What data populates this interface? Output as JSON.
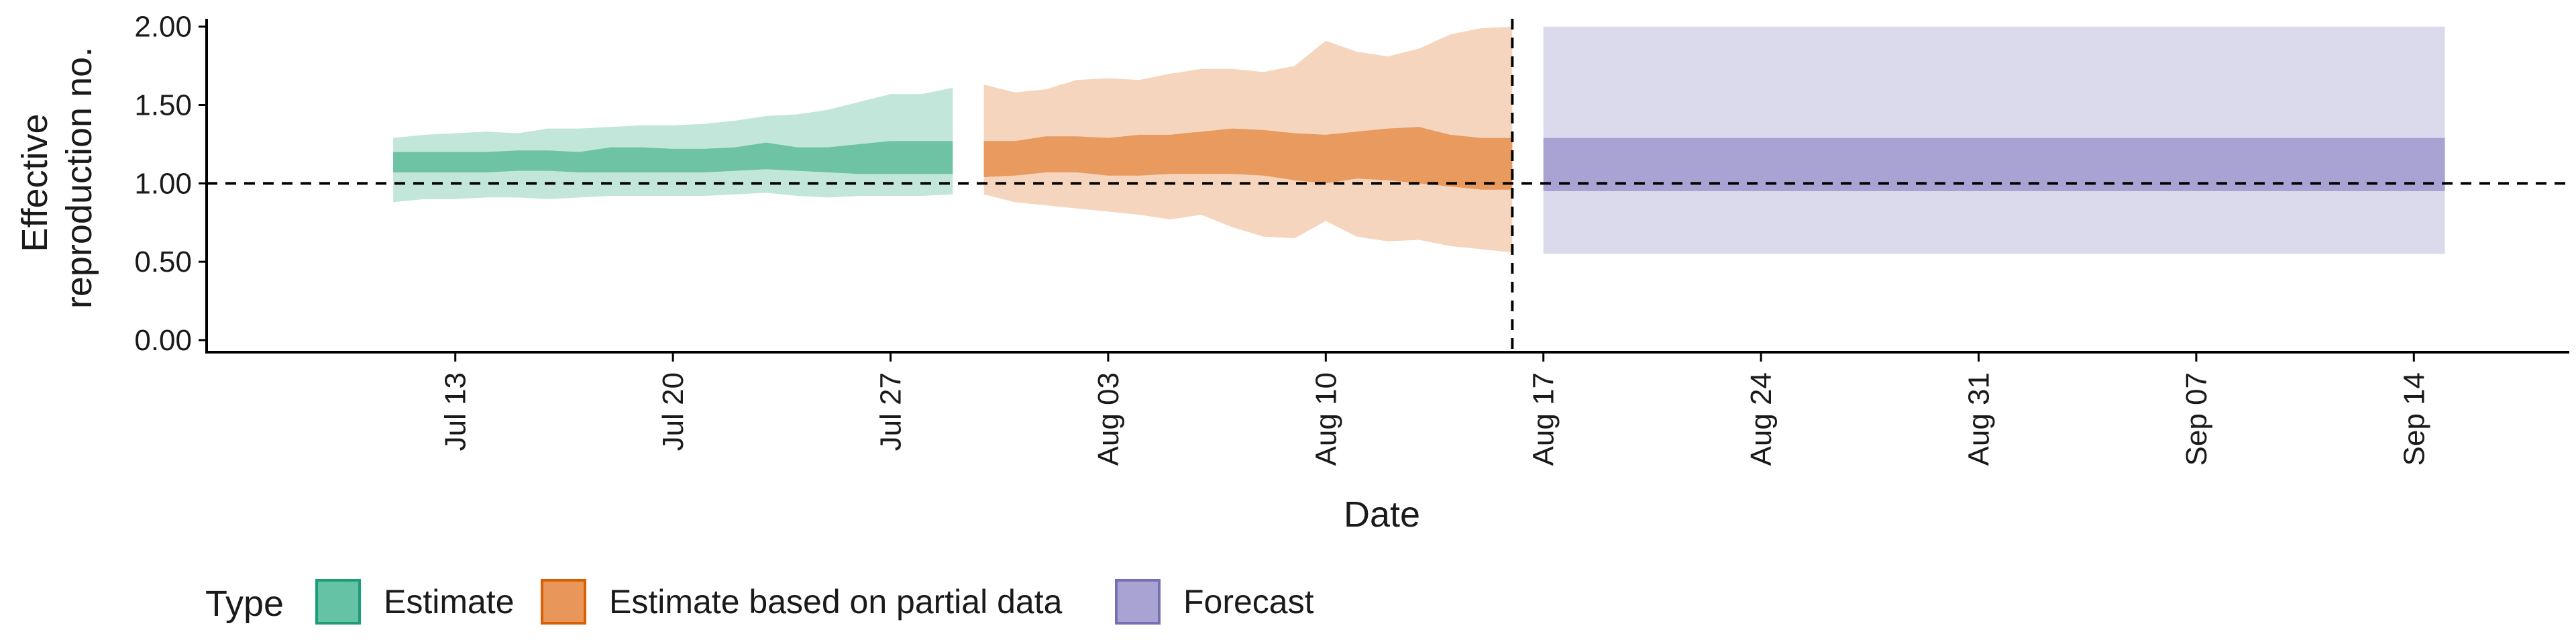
{
  "chart_data": {
    "type": "area",
    "xlabel": "Date",
    "ylabel_lines": [
      "Effective",
      "reproduction no."
    ],
    "ylim": [
      0,
      2.05
    ],
    "y_ticks": [
      0,
      0.5,
      1.0,
      1.5,
      2.0
    ],
    "y_tick_labels": [
      "0.00",
      "0.50",
      "1.00",
      "1.50",
      "2.00"
    ],
    "x_range": [
      "2020-07-05",
      "2020-09-19"
    ],
    "x_ticks": [
      "2020-07-13",
      "2020-07-20",
      "2020-07-27",
      "2020-08-03",
      "2020-08-10",
      "2020-08-17",
      "2020-08-24",
      "2020-08-31",
      "2020-09-07",
      "2020-09-14"
    ],
    "x_tick_labels": [
      "Jul 13",
      "Jul 20",
      "Jul 27",
      "Aug 03",
      "Aug 10",
      "Aug 17",
      "Aug 24",
      "Aug 31",
      "Sep 07",
      "Sep 14"
    ],
    "hline_y": 1.0,
    "vline_x": "2020-08-16",
    "legend": {
      "title": "Type",
      "placement": "bottom",
      "items": [
        {
          "label": "Estimate",
          "color": "#66c2a5",
          "border": "#1b9e77"
        },
        {
          "label": "Estimate based on partial data",
          "color": "#e9965a",
          "border": "#d95f02"
        },
        {
          "label": "Forecast",
          "color": "#a9a3d3",
          "border": "#7570b3"
        }
      ]
    },
    "series": [
      {
        "name": "Estimate",
        "colors": {
          "outer": "#c3e6da",
          "inner": "#6dc3a4"
        },
        "x": [
          "2020-07-11",
          "2020-07-12",
          "2020-07-13",
          "2020-07-14",
          "2020-07-15",
          "2020-07-16",
          "2020-07-17",
          "2020-07-18",
          "2020-07-19",
          "2020-07-20",
          "2020-07-21",
          "2020-07-22",
          "2020-07-23",
          "2020-07-24",
          "2020-07-25",
          "2020-07-26",
          "2020-07-27",
          "2020-07-28",
          "2020-07-29"
        ],
        "outer_upper": [
          1.29,
          1.31,
          1.32,
          1.33,
          1.32,
          1.35,
          1.35,
          1.36,
          1.37,
          1.37,
          1.38,
          1.4,
          1.43,
          1.44,
          1.47,
          1.52,
          1.57,
          1.57,
          1.61
        ],
        "inner_upper": [
          1.2,
          1.2,
          1.2,
          1.2,
          1.21,
          1.21,
          1.2,
          1.23,
          1.23,
          1.22,
          1.22,
          1.23,
          1.26,
          1.23,
          1.23,
          1.25,
          1.27,
          1.27,
          1.27
        ],
        "inner_lower": [
          1.07,
          1.07,
          1.07,
          1.07,
          1.08,
          1.08,
          1.07,
          1.07,
          1.07,
          1.07,
          1.07,
          1.08,
          1.09,
          1.08,
          1.07,
          1.06,
          1.06,
          1.06,
          1.06
        ],
        "outer_lower": [
          0.88,
          0.9,
          0.9,
          0.91,
          0.91,
          0.9,
          0.91,
          0.92,
          0.92,
          0.92,
          0.92,
          0.93,
          0.94,
          0.92,
          0.91,
          0.92,
          0.92,
          0.92,
          0.93
        ]
      },
      {
        "name": "Estimate based on partial data",
        "colors": {
          "outer": "#f5d5bd",
          "inner": "#e89a5f"
        },
        "x": [
          "2020-07-30",
          "2020-07-31",
          "2020-08-01",
          "2020-08-02",
          "2020-08-03",
          "2020-08-04",
          "2020-08-05",
          "2020-08-06",
          "2020-08-07",
          "2020-08-08",
          "2020-08-09",
          "2020-08-10",
          "2020-08-11",
          "2020-08-12",
          "2020-08-13",
          "2020-08-14",
          "2020-08-15",
          "2020-08-16"
        ],
        "outer_upper": [
          1.63,
          1.58,
          1.6,
          1.66,
          1.67,
          1.66,
          1.7,
          1.73,
          1.73,
          1.71,
          1.75,
          1.91,
          1.84,
          1.81,
          1.86,
          1.95,
          1.99,
          2.0
        ],
        "inner_upper": [
          1.27,
          1.27,
          1.3,
          1.3,
          1.29,
          1.31,
          1.31,
          1.33,
          1.35,
          1.34,
          1.32,
          1.31,
          1.33,
          1.35,
          1.36,
          1.31,
          1.29,
          1.29
        ],
        "inner_lower": [
          1.04,
          1.05,
          1.07,
          1.07,
          1.05,
          1.05,
          1.06,
          1.06,
          1.06,
          1.05,
          1.02,
          1.0,
          1.03,
          1.02,
          1.0,
          0.98,
          0.96,
          0.96
        ],
        "outer_lower": [
          0.93,
          0.88,
          0.86,
          0.84,
          0.82,
          0.8,
          0.77,
          0.8,
          0.72,
          0.66,
          0.65,
          0.76,
          0.66,
          0.63,
          0.64,
          0.6,
          0.58,
          0.56
        ]
      },
      {
        "name": "Forecast",
        "colors": {
          "outer": "#dbdaed",
          "inner": "#a9a3d3"
        },
        "x": [
          "2020-08-17",
          "2020-09-15"
        ],
        "outer_upper": [
          2.0,
          2.0
        ],
        "inner_upper": [
          1.29,
          1.29
        ],
        "inner_lower": [
          0.95,
          0.95
        ],
        "outer_lower": [
          0.55,
          0.55
        ]
      }
    ]
  }
}
